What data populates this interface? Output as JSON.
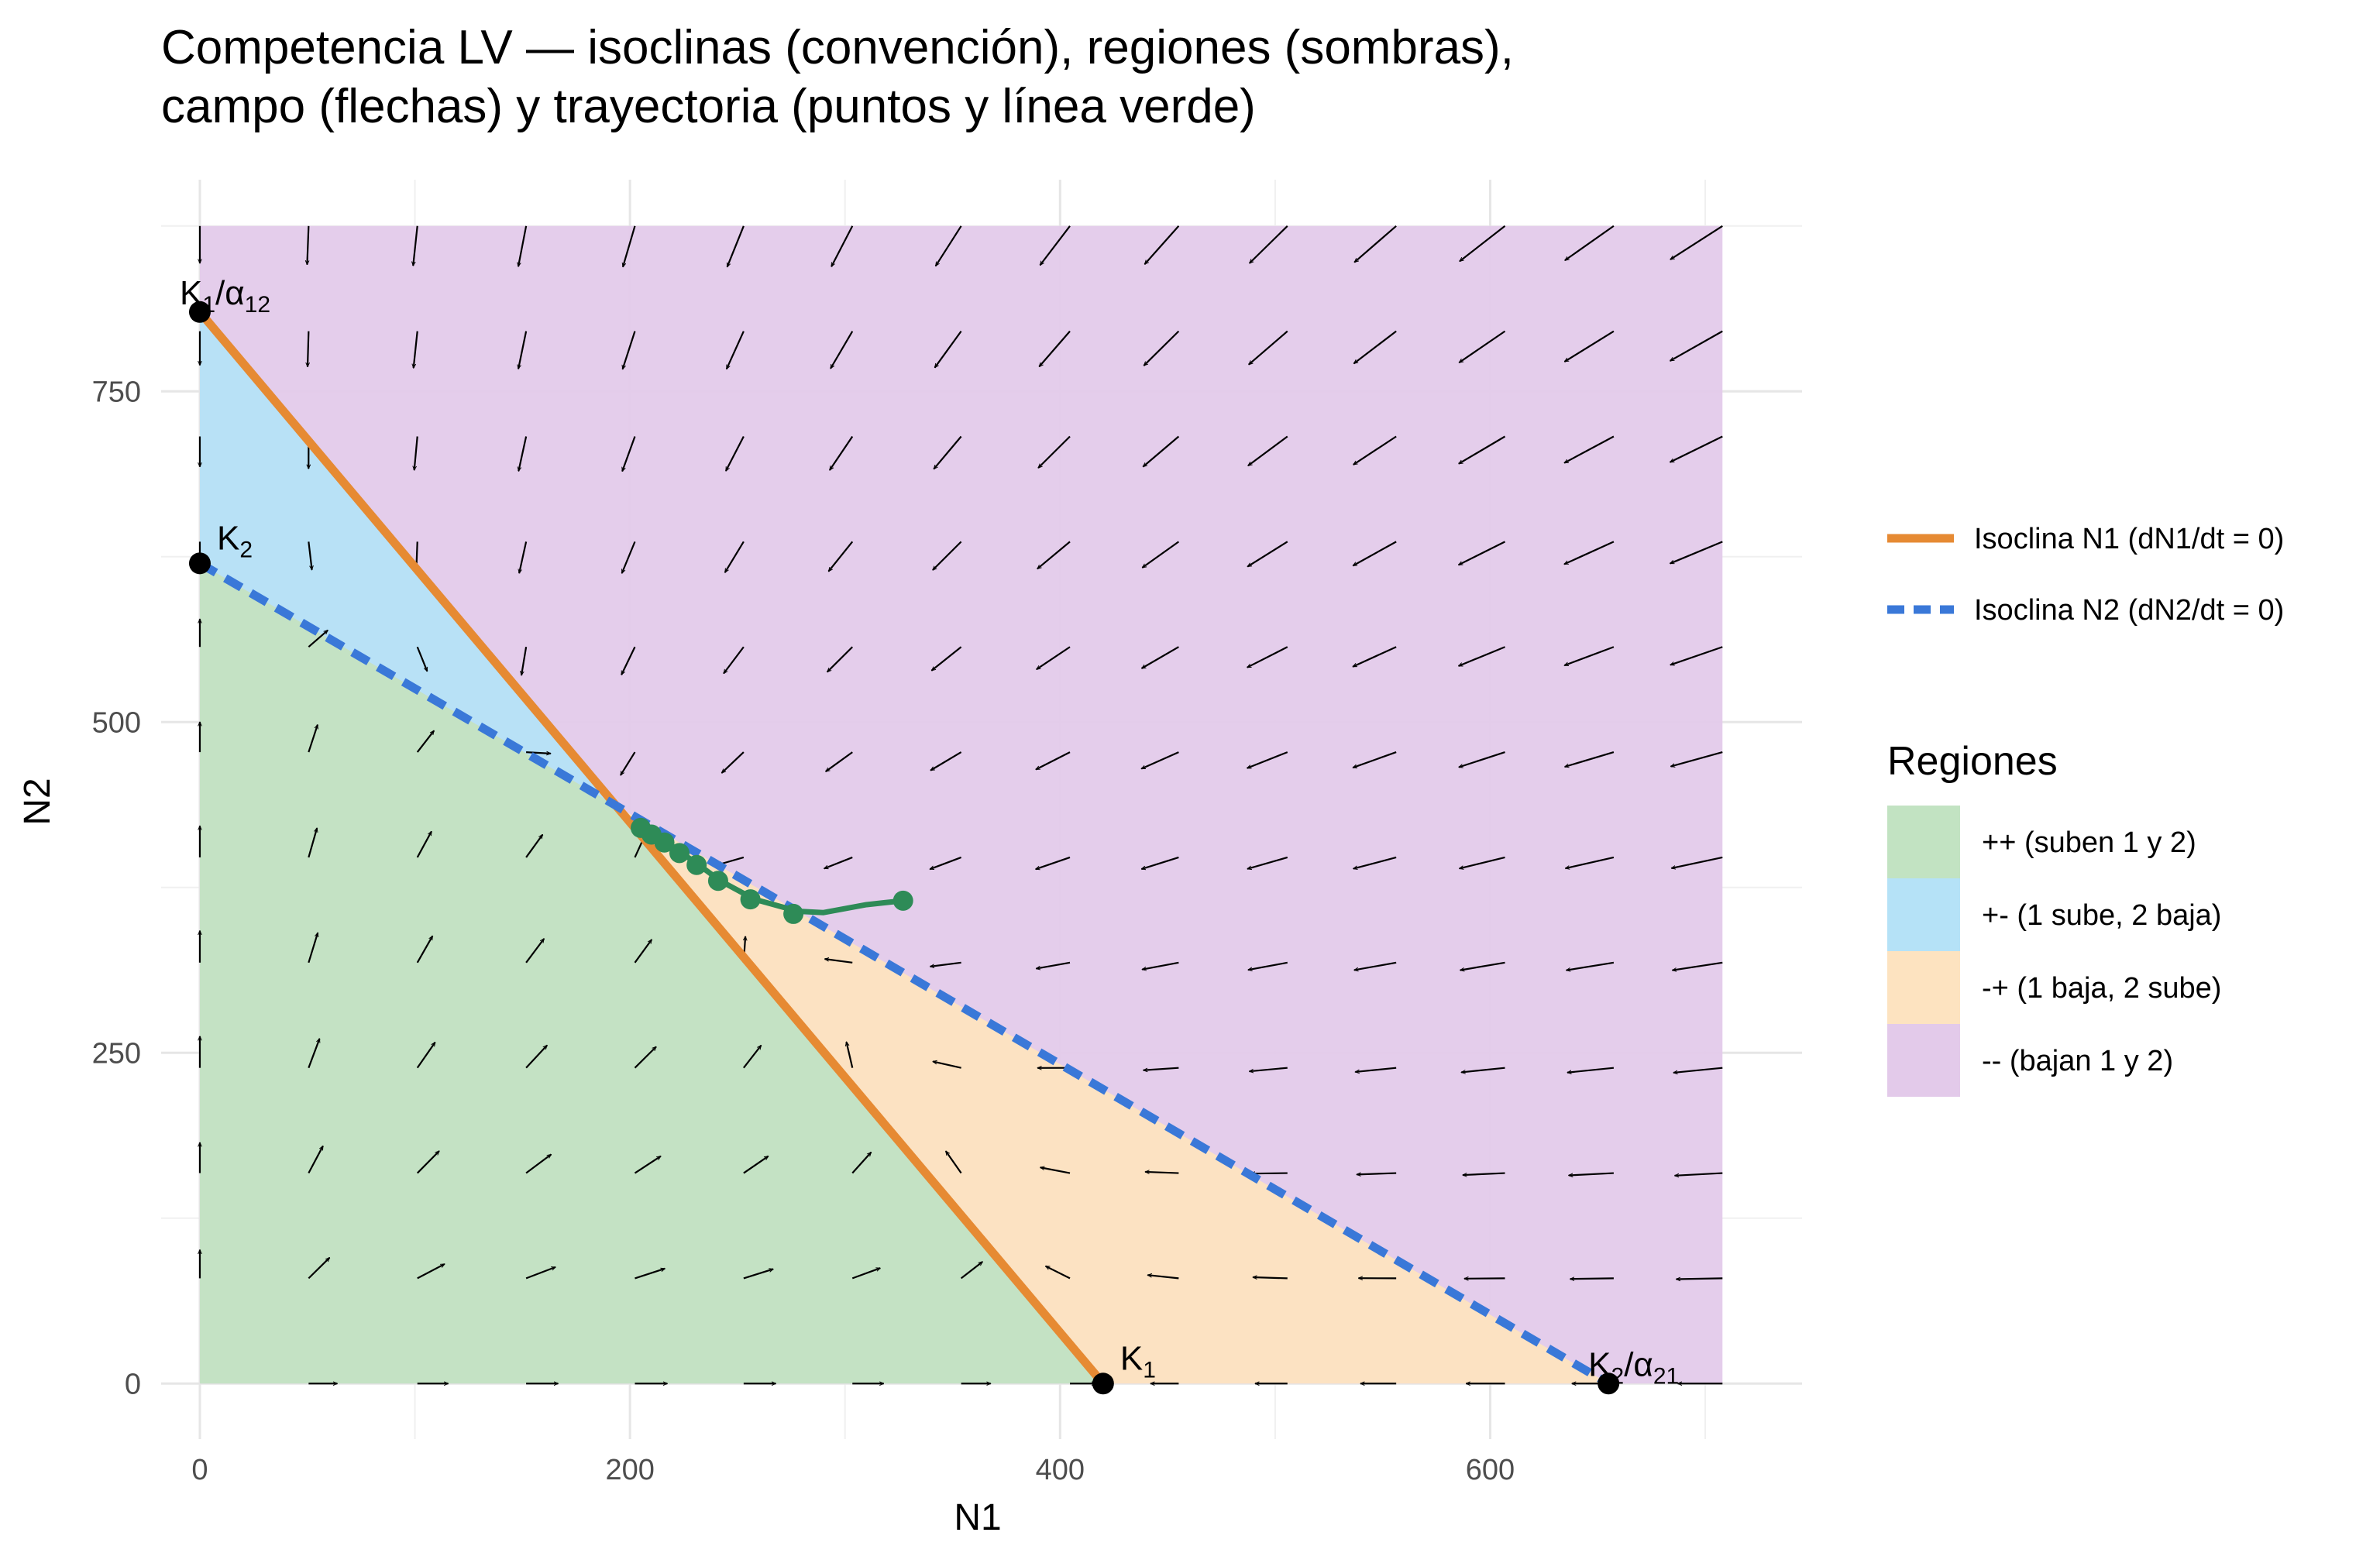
{
  "chart_data": {
    "type": "phase_plane",
    "title_line1": "Competencia LV — isoclinas (convención), regiones (sombras),",
    "title_line2": "campo (flechas) y trayectoria (puntos y línea verde)",
    "xlabel": "N1",
    "ylabel": "N2",
    "xlim": [
      -18,
      745
    ],
    "ylim": [
      -42,
      910
    ],
    "xticks": [
      0,
      200,
      400,
      600
    ],
    "yticks": [
      0,
      250,
      500,
      750
    ],
    "grid": true,
    "legend_placement": "right",
    "params": {
      "K1": 420,
      "K2": 620,
      "K1_over_alpha12": 810,
      "K2_over_alpha21": 655,
      "N1_max": 708,
      "N2_max": 875
    },
    "isoclines": [
      {
        "name": "Isoclina N1 (dN1/dt = 0)",
        "color": "#E68A33",
        "style": "solid",
        "points": [
          [
            0,
            810
          ],
          [
            420,
            0
          ]
        ]
      },
      {
        "name": "Isoclina N2 (dN2/dt = 0)",
        "color": "#3A78D8",
        "style": "dashed",
        "points": [
          [
            0,
            620
          ],
          [
            655,
            0
          ]
        ]
      }
    ],
    "regions_legend_title": "Regiones",
    "regions": [
      {
        "label": "++ (suben 1 y 2)",
        "color": "#C2E3C2"
      },
      {
        "label": "+- (1 sube, 2 baja)",
        "color": "#B5E2F7"
      },
      {
        "label": "-+ (1 baja, 2 sube)",
        "color": "#FDE3C0"
      },
      {
        "label": "-- (bajan 1 y 2)",
        "color": "#E3CAEA"
      }
    ],
    "annotations": [
      {
        "base": "K",
        "sub": "1",
        "suffix": "",
        "point": [
          420,
          0
        ]
      },
      {
        "base": "K",
        "sub": "2",
        "suffix": "",
        "point": [
          0,
          620
        ]
      },
      {
        "base": "K",
        "sub": "1",
        "suffix": "/α",
        "sub2": "12",
        "point": [
          0,
          810
        ]
      },
      {
        "base": "K",
        "sub": "2",
        "suffix": "/α",
        "sub2": "21",
        "point": [
          655,
          0
        ]
      }
    ],
    "trajectory": {
      "color": "#2E8B57",
      "points": [
        [
          327,
          365
        ],
        [
          310,
          362
        ],
        [
          290,
          356
        ],
        [
          278,
          357
        ],
        [
          258,
          366
        ],
        [
          242,
          380
        ],
        [
          232,
          392
        ],
        [
          225,
          400
        ],
        [
          218,
          408
        ],
        [
          212,
          414
        ],
        [
          208,
          418
        ],
        [
          205,
          421
        ]
      ],
      "markers": [
        [
          327,
          365
        ],
        [
          276,
          355
        ],
        [
          256,
          366
        ],
        [
          241,
          380
        ],
        [
          231,
          392
        ],
        [
          223,
          401
        ],
        [
          216,
          409
        ],
        [
          210,
          415
        ],
        [
          205,
          420
        ]
      ]
    },
    "field": {
      "nx": 15,
      "ny": 12,
      "arrow_max_len": 80,
      "arrow_color": "#000000"
    }
  }
}
